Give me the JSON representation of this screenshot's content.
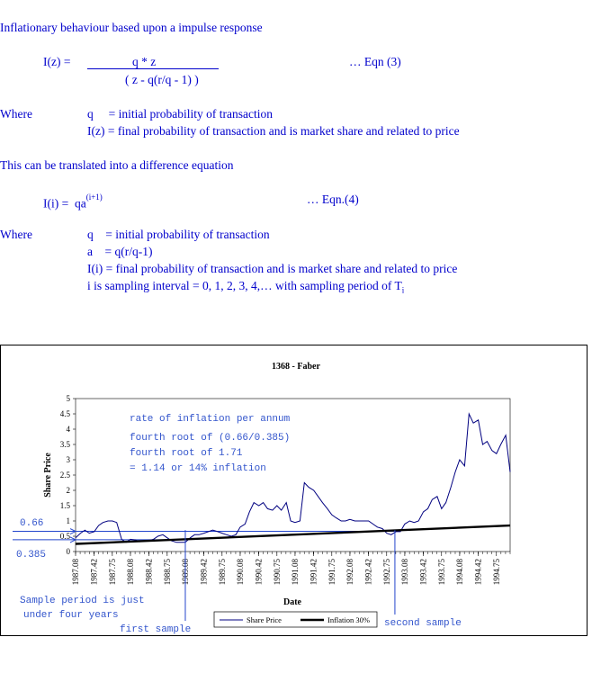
{
  "doc": {
    "heading": "Inflationary behaviour based upon a impulse response",
    "eq3": {
      "lhs": "I(z) =",
      "numerator": "q * z",
      "denominator": "( z - q(r/q - 1) )",
      "label": "… Eqn (3)"
    },
    "where1": {
      "word": "Where",
      "line1": "q     = initial probability of transaction",
      "line2": "I(z) = final probability of transaction and is market share and related to price"
    },
    "diff_text": "This can be translated into a difference equation",
    "eq4": {
      "lhs": "I(i) =  qa",
      "exponent": "(i+1)",
      "label": "… Eqn.(4)"
    },
    "where2": {
      "word": "Where",
      "line1": "q    = initial probability of transaction",
      "line2": "a    = q(r/q-1)",
      "line3": "I(i) = final probability of transaction and is market share and related to price",
      "line4": "i is sampling interval = 0, 1, 2, 3, 4,… with sampling period of T",
      "line4_sub": "i"
    }
  },
  "annotations": {
    "rate_title": "rate of inflation per annum",
    "rate_line1": "fourth root of (0.66/0.385)",
    "rate_line2": "fourth root of 1.71",
    "rate_line3": "= 1.14 or 14% inflation",
    "label_066": "0.66",
    "label_0385": "0.385",
    "sample_period_1": "Sample period is just",
    "sample_period_2": "under four years",
    "first_sample": "first sample",
    "second_sample": "second sample"
  },
  "chart_data": {
    "type": "line",
    "title": "1368 - Faber",
    "xlabel": "Date",
    "ylabel": "Share Price",
    "ylim": [
      0,
      5
    ],
    "yticks": [
      "0",
      "0.5",
      "1",
      "1.5",
      "2",
      "2.5",
      "3",
      "3.5",
      "4",
      "4.5",
      "5"
    ],
    "xticks": [
      "1987.08",
      "1987.42",
      "1987.75",
      "1988.08",
      "1988.42",
      "1988.75",
      "1989.08",
      "1989.42",
      "1989.75",
      "1990.08",
      "1990.42",
      "1990.75",
      "1991.08",
      "1991.42",
      "1991.75",
      "1992.08",
      "1992.42",
      "1992.75",
      "1993.08",
      "1993.42",
      "1993.75",
      "1994.08",
      "1994.42",
      "1994.75"
    ],
    "legend": [
      "Share Price",
      "Inflation 30%"
    ],
    "legend_position": "bottom",
    "series": [
      {
        "name": "Share Price",
        "color": "#000080",
        "x": [
          1987.08,
          1987.17,
          1987.25,
          1987.33,
          1987.42,
          1987.5,
          1987.58,
          1987.67,
          1987.75,
          1987.83,
          1987.92,
          1988.0,
          1988.08,
          1988.17,
          1988.25,
          1988.33,
          1988.42,
          1988.5,
          1988.58,
          1988.67,
          1988.75,
          1988.83,
          1988.92,
          1989.0,
          1989.08,
          1989.17,
          1989.25,
          1989.33,
          1989.42,
          1989.5,
          1989.58,
          1989.67,
          1989.75,
          1989.83,
          1989.92,
          1990.0,
          1990.08,
          1990.17,
          1990.25,
          1990.33,
          1990.42,
          1990.5,
          1990.58,
          1990.67,
          1990.75,
          1990.83,
          1990.92,
          1991.0,
          1991.08,
          1991.17,
          1991.25,
          1991.33,
          1991.42,
          1991.5,
          1991.58,
          1991.67,
          1991.75,
          1991.83,
          1991.92,
          1992.0,
          1992.08,
          1992.17,
          1992.25,
          1992.33,
          1992.42,
          1992.5,
          1992.58,
          1992.67,
          1992.75,
          1992.83,
          1992.92,
          1993.0,
          1993.08,
          1993.17,
          1993.25,
          1993.33,
          1993.42,
          1993.5,
          1993.58,
          1993.67,
          1993.75,
          1993.83,
          1993.92,
          1994.0,
          1994.08,
          1994.17,
          1994.25,
          1994.33,
          1994.42,
          1994.5,
          1994.58,
          1994.67,
          1994.75,
          1994.83,
          1994.92,
          1995.0
        ],
        "y": [
          0.45,
          0.6,
          0.7,
          0.6,
          0.65,
          0.85,
          0.95,
          1.0,
          1.0,
          0.95,
          0.4,
          0.3,
          0.4,
          0.38,
          0.32,
          0.35,
          0.35,
          0.4,
          0.5,
          0.55,
          0.45,
          0.35,
          0.3,
          0.3,
          0.3,
          0.45,
          0.55,
          0.55,
          0.6,
          0.65,
          0.7,
          0.65,
          0.6,
          0.55,
          0.5,
          0.55,
          0.8,
          0.9,
          1.3,
          1.6,
          1.5,
          1.6,
          1.4,
          1.35,
          1.5,
          1.35,
          1.6,
          1.0,
          0.95,
          1.0,
          2.25,
          2.1,
          2.0,
          1.8,
          1.6,
          1.4,
          1.2,
          1.1,
          1.0,
          1.0,
          1.05,
          1.0,
          1.0,
          1.0,
          1.0,
          0.9,
          0.8,
          0.75,
          0.6,
          0.55,
          0.65,
          0.65,
          0.9,
          1.0,
          0.95,
          1.0,
          1.3,
          1.4,
          1.7,
          1.8,
          1.4,
          1.6,
          2.1,
          2.6,
          3.0,
          2.8,
          4.5,
          4.2,
          4.3,
          3.5,
          3.6,
          3.3,
          3.2,
          3.5,
          3.8,
          2.6
        ]
      },
      {
        "name": "Inflation 30%",
        "color": "#000000",
        "x": [
          1987.08,
          1995.0
        ],
        "y": [
          0.25,
          0.85
        ]
      }
    ],
    "reference_lines": [
      {
        "label": "0.66",
        "y": 0.66
      },
      {
        "label": "0.385",
        "y": 0.385
      }
    ],
    "markers": [
      {
        "label": "first sample",
        "x": 1989.08
      },
      {
        "label": "second sample",
        "x": 1992.9
      }
    ]
  }
}
